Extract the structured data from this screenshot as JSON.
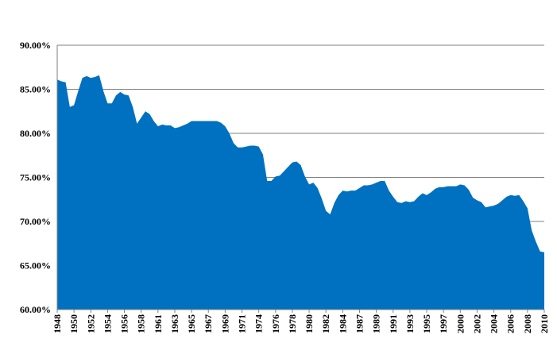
{
  "chart_data": {
    "type": "area",
    "color": "#0070c0",
    "grid": true,
    "categories": [
      "1948",
      null,
      null,
      null,
      "1950",
      null,
      null,
      null,
      "1952",
      null,
      null,
      null,
      "1954",
      null,
      null,
      null,
      "1956",
      null,
      null,
      null,
      "1958",
      null,
      null,
      null,
      "1961",
      null,
      null,
      null,
      "1963",
      null,
      null,
      null,
      "1965",
      null,
      null,
      null,
      "1967",
      null,
      null,
      null,
      "1969",
      null,
      null,
      null,
      "1971",
      null,
      null,
      null,
      "1974",
      null,
      null,
      null,
      "1976",
      null,
      null,
      null,
      "1978",
      null,
      null,
      null,
      "1980",
      null,
      null,
      null,
      "1982",
      null,
      null,
      null,
      "1984",
      null,
      null,
      null,
      "1987",
      null,
      null,
      null,
      "1989",
      null,
      null,
      null,
      "1991",
      null,
      null,
      null,
      "1993",
      null,
      null,
      null,
      "1995",
      null,
      null,
      null,
      "1997",
      null,
      null,
      null,
      "2000",
      null,
      null,
      null,
      "2002",
      null,
      null,
      null,
      "2004",
      null,
      null,
      null,
      "2006",
      null,
      null,
      null,
      "2008",
      null,
      null,
      null,
      "2010"
    ],
    "values": [
      86.1,
      85.9,
      85.8,
      83.0,
      83.2,
      84.8,
      86.3,
      86.5,
      86.3,
      86.4,
      86.6,
      84.8,
      83.4,
      83.4,
      84.3,
      84.7,
      84.4,
      84.3,
      83.0,
      81.1,
      81.8,
      82.5,
      82.2,
      81.4,
      80.8,
      81.0,
      80.9,
      80.9,
      80.6,
      80.7,
      80.9,
      81.1,
      81.4,
      81.4,
      81.4,
      81.4,
      81.4,
      81.4,
      81.4,
      81.2,
      80.8,
      80.0,
      78.9,
      78.4,
      78.4,
      78.5,
      78.6,
      78.6,
      78.5,
      77.6,
      74.6,
      74.6,
      75.1,
      75.2,
      75.7,
      76.2,
      76.7,
      76.8,
      76.4,
      75.1,
      74.2,
      74.4,
      73.8,
      72.6,
      71.2,
      70.8,
      72.1,
      73.0,
      73.5,
      73.4,
      73.5,
      73.5,
      73.8,
      74.1,
      74.1,
      74.2,
      74.4,
      74.6,
      74.6,
      73.5,
      72.8,
      72.2,
      72.1,
      72.3,
      72.2,
      72.3,
      72.8,
      73.2,
      73.0,
      73.3,
      73.7,
      73.9,
      73.9,
      74.0,
      74.0,
      74.0,
      74.2,
      74.1,
      73.6,
      72.7,
      72.4,
      72.2,
      71.6,
      71.7,
      71.8,
      72.0,
      72.4,
      72.8,
      73.0,
      72.9,
      73.0,
      72.3,
      71.5,
      69.0,
      67.7,
      66.6,
      66.5
    ],
    "ylim": [
      60,
      90
    ],
    "yticks": [
      {
        "value": 60,
        "label": "60.00%"
      },
      {
        "value": 65,
        "label": "65.00%"
      },
      {
        "value": 70,
        "label": "70.00%"
      },
      {
        "value": 75,
        "label": "75.00%"
      },
      {
        "value": 80,
        "label": "80.00%"
      },
      {
        "value": 85,
        "label": "85.00%"
      },
      {
        "value": 90,
        "label": "90.00%"
      }
    ]
  }
}
